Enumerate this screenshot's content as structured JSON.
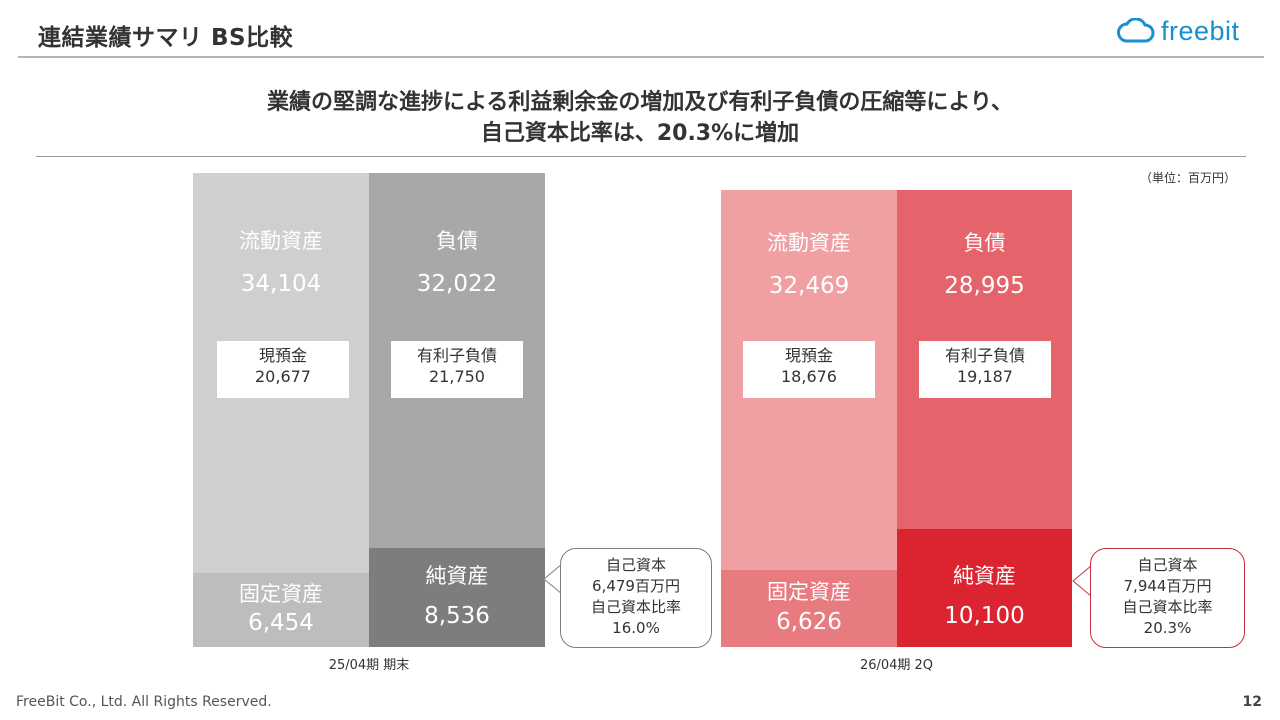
{
  "header": {
    "title": "連結業績サマリ BS比較",
    "logo_text": "freebit"
  },
  "headline": {
    "line1": "業績の堅調な進捗による利益剰余金の増加及び有利子負債の圧縮等により、",
    "line2": "自己資本比率は、20.3%に増加"
  },
  "unit_note": "（単位：百万円）",
  "periods": [
    {
      "label": "25/04期 期末",
      "current_assets": {
        "label": "流動資産",
        "value": "34,104",
        "sub_label": "現預金",
        "sub_value": "20,677"
      },
      "fixed_assets": {
        "label": "固定資産",
        "value": "6,454"
      },
      "liabilities": {
        "label": "負債",
        "value": "32,022",
        "sub_label": "有利子負債",
        "sub_value": "21,750"
      },
      "net_assets": {
        "label": "純資産",
        "value": "8,536"
      },
      "equity": {
        "label": "自己資本",
        "value": "6,479百万円",
        "ratio_label": "自己資本比率",
        "ratio_value": "16.0%"
      }
    },
    {
      "label": "26/04期 2Q",
      "current_assets": {
        "label": "流動資産",
        "value": "32,469",
        "sub_label": "現預金",
        "sub_value": "18,676"
      },
      "fixed_assets": {
        "label": "固定資産",
        "value": "6,626"
      },
      "liabilities": {
        "label": "負債",
        "value": "28,995",
        "sub_label": "有利子負債",
        "sub_value": "19,187"
      },
      "net_assets": {
        "label": "純資産",
        "value": "10,100"
      },
      "equity": {
        "label": "自己資本",
        "value": "7,944百万円",
        "ratio_label": "自己資本比率",
        "ratio_value": "20.3%"
      }
    }
  ],
  "colors": {
    "gray_current": "#cfcfcf",
    "gray_fixed": "#bdbdbd",
    "gray_liab": "#a8a8a8",
    "gray_net": "#7d7d7d",
    "red_current": "#f09fa2",
    "red_fixed": "#e87b80",
    "red_liab": "#e5636a",
    "red_net": "#dc2330",
    "brand_blue": "#1a8fd0"
  },
  "footer": {
    "copyright": "FreeBit Co., Ltd. All Rights Reserved.",
    "page_number": "12"
  }
}
